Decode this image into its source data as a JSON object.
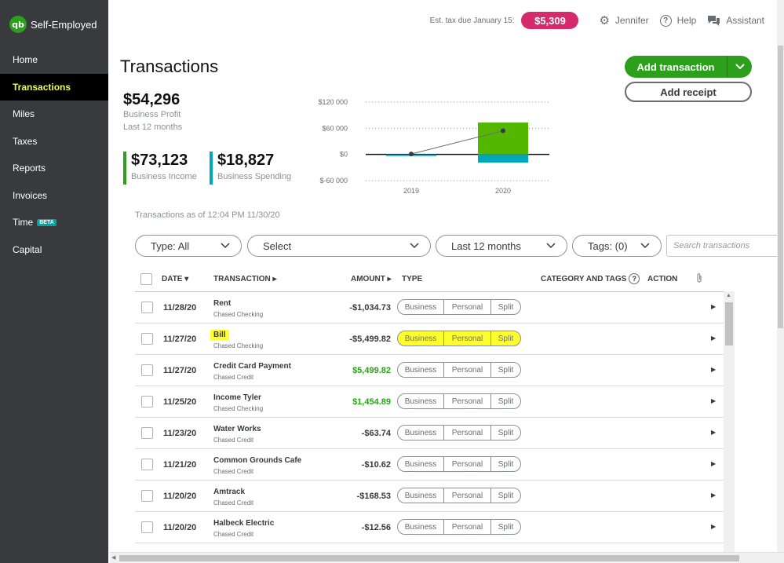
{
  "app": {
    "name": "Self-Employed"
  },
  "sidebar": {
    "items": [
      {
        "label": "Home"
      },
      {
        "label": "Transactions"
      },
      {
        "label": "Miles"
      },
      {
        "label": "Taxes"
      },
      {
        "label": "Reports"
      },
      {
        "label": "Invoices"
      },
      {
        "label": "Time",
        "badge": "BETA"
      },
      {
        "label": "Capital"
      }
    ],
    "active": "Transactions"
  },
  "topbar": {
    "est_tax_label": "Est. tax due January 15:",
    "est_tax_value": "$5,309",
    "user": "Jennifer",
    "help": "Help",
    "assistant": "Assistant"
  },
  "page": {
    "title": "Transactions"
  },
  "actions": {
    "add_transaction": "Add transaction",
    "add_receipt": "Add receipt"
  },
  "summary": {
    "profit_value": "$54,296",
    "profit_label": "Business Profit",
    "period": "Last 12 months",
    "income_value": "$73,123",
    "income_label": "Business Income",
    "spending_value": "$18,827",
    "spending_label": "Business Spending"
  },
  "chart_data": {
    "type": "bar",
    "categories": [
      "2019",
      "2020"
    ],
    "series": [
      {
        "values": [
          0,
          73123
        ],
        "color": "#53b700"
      },
      {
        "values": [
          -1500,
          -18827
        ],
        "color": "#00a6b9"
      },
      {
        "values": [
          1000,
          54296
        ],
        "color": "#393a3d"
      }
    ],
    "yticks": [
      "$120 000",
      "$60 000",
      "$0",
      "$-60 000"
    ],
    "ylim": [
      -60000,
      120000
    ],
    "grid": true
  },
  "as_of": "Transactions as of 12:04 PM 11/30/20",
  "filters": {
    "type": "Type: All",
    "select": "Select",
    "period": "Last 12 months",
    "tags": "Tags: (0)",
    "search_placeholder": "Search transactions"
  },
  "table": {
    "headers": {
      "date": "DATE",
      "transaction": "TRANSACTION",
      "amount": "AMOUNT",
      "type": "TYPE",
      "category": "CATEGORY AND TAGS",
      "action": "ACTION"
    },
    "type_options": [
      "Business",
      "Personal",
      "Split"
    ],
    "rows": [
      {
        "date": "11/28/20",
        "desc": "Rent",
        "account": "Chased Checking",
        "amount": "-$1,034.73"
      },
      {
        "date": "11/27/20",
        "desc": "Bill",
        "account": "Chased Checking",
        "amount": "-$5,499.82"
      },
      {
        "date": "11/27/20",
        "desc": "Credit Card Payment",
        "account": "Chased Credit",
        "amount": "$5,499.82"
      },
      {
        "date": "11/25/20",
        "desc": "Income Tyler",
        "account": "Chased Checking",
        "amount": "$1,454.89"
      },
      {
        "date": "11/23/20",
        "desc": "Water Works",
        "account": "Chased Credit",
        "amount": "-$63.74"
      },
      {
        "date": "11/21/20",
        "desc": "Common Grounds Cafe",
        "account": "Chased Credit",
        "amount": "-$10.62"
      },
      {
        "date": "11/20/20",
        "desc": "Amtrack",
        "account": "Chased Credit",
        "amount": "-$168.53"
      },
      {
        "date": "11/20/20",
        "desc": "Halbeck Electric",
        "account": "Chased Credit",
        "amount": "-$12.56"
      }
    ]
  }
}
